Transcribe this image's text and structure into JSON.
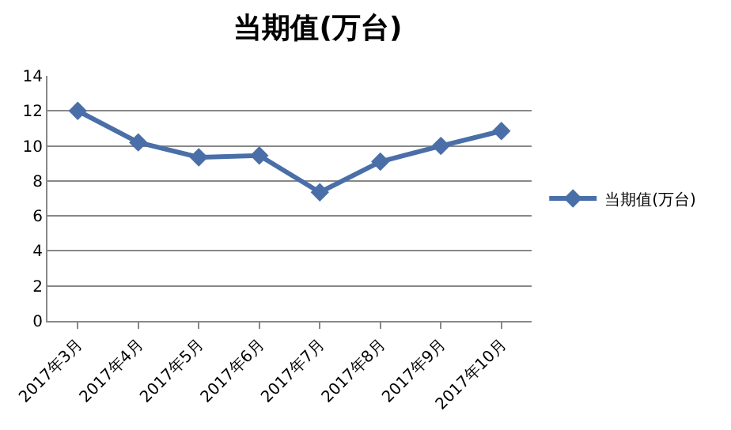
{
  "chart_data": {
    "type": "line",
    "title": "当期值(万台)",
    "categories": [
      "2017年3月",
      "2017年4月",
      "2017年5月",
      "2017年6月",
      "2017年7月",
      "2017年8月",
      "2017年9月",
      "2017年10月"
    ],
    "series": [
      {
        "name": "当期值(万台)",
        "color": "#4a6fa8",
        "values": [
          12.0,
          10.2,
          9.35,
          9.45,
          7.35,
          9.1,
          10.0,
          10.85
        ]
      }
    ],
    "ylim": [
      0,
      14
    ],
    "yticks": [
      0,
      2,
      4,
      6,
      8,
      10,
      12,
      14
    ],
    "grid": "y",
    "legend": "right",
    "marker": "diamond",
    "line_style": "solid"
  }
}
